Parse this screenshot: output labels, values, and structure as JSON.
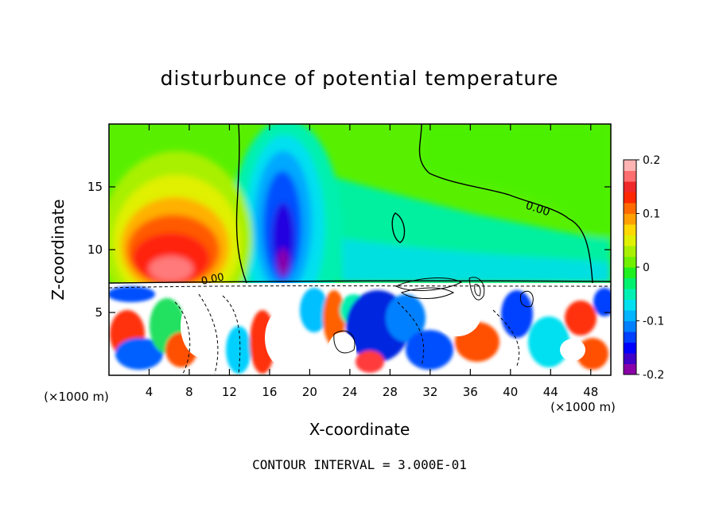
{
  "title": "disturbunce of potential temperature",
  "footer": "CONTOUR INTERVAL = 3.000E-01",
  "chart_data": {
    "type": "heatmap",
    "title": "disturbunce of potential temperature",
    "xlabel": "X-coordinate",
    "ylabel": "Z-coordinate",
    "x_unit_left": "(×1000 m)",
    "x_unit_right": "(×1000 m)",
    "xlim": [
      0,
      50
    ],
    "ylim": [
      0,
      20
    ],
    "x_ticks": [
      4,
      8,
      12,
      16,
      20,
      24,
      28,
      32,
      36,
      40,
      44,
      48
    ],
    "y_ticks": [
      5,
      10,
      15
    ],
    "contour_label": "0.00",
    "contour_interval": "CONTOUR INTERVAL = 3.000E-01",
    "colorbar": {
      "range": [
        -0.2,
        0.2
      ],
      "tick_labels": [
        "0.2",
        "0.1",
        "0",
        "-0.1",
        "-0.2"
      ],
      "tick_values": [
        0.2,
        0.1,
        0,
        -0.1,
        -0.2
      ],
      "colors": [
        "#8a00a8",
        "#4000c8",
        "#0000ff",
        "#0040ff",
        "#0080ff",
        "#00b4ff",
        "#00e0f0",
        "#00f0b4",
        "#00f070",
        "#20f020",
        "#70f000",
        "#a8f000",
        "#e0f000",
        "#ffd800",
        "#ffa000",
        "#ff6a00",
        "#ff2800",
        "#f02828",
        "#ff6e6e",
        "#ffb4b4"
      ]
    },
    "regions": [
      {
        "name": "positive-anomaly",
        "x": 7.5,
        "z": 11,
        "value": 0.15
      },
      {
        "name": "negative-anomaly",
        "x": 17.5,
        "z": 12,
        "value": -0.15
      },
      {
        "name": "upper-background",
        "x": 35,
        "z": 16,
        "value": 0.02
      },
      {
        "name": "right-background",
        "x": 46,
        "z": 10,
        "value": -0.03
      }
    ]
  }
}
